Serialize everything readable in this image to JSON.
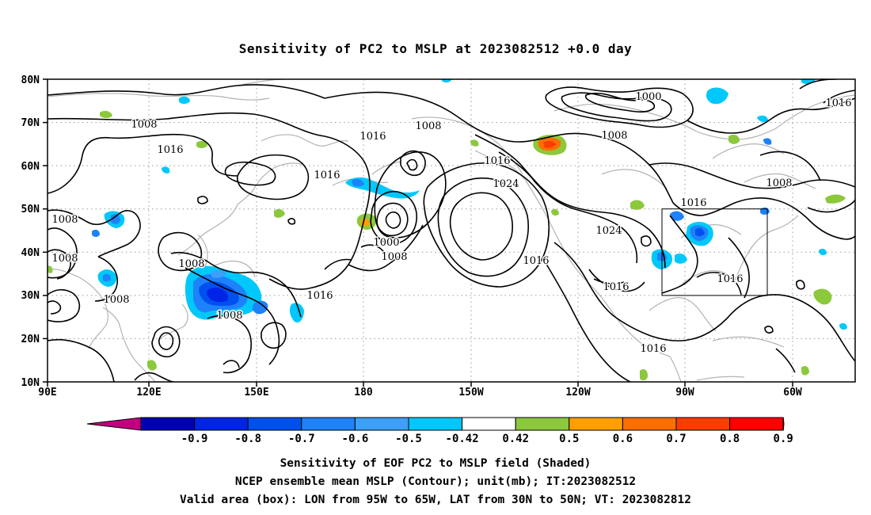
{
  "title": "Sensitivity of PC2 to MSLP at 2023082512 +0.0 day",
  "axes": {
    "lat_ticks": [
      "80N",
      "70N",
      "60N",
      "50N",
      "40N",
      "30N",
      "20N",
      "10N"
    ],
    "lon_ticks": [
      "90E",
      "120E",
      "150E",
      "180",
      "150W",
      "120W",
      "90W",
      "60W"
    ]
  },
  "contour_labels": [
    "1008",
    "1016",
    "1008",
    "1016",
    "1000",
    "1016",
    "1016",
    "1008",
    "1016",
    "1024",
    "1008",
    "1016",
    "1024",
    "1000",
    "1008",
    "1016",
    "1016",
    "1008",
    "1008",
    "1008",
    "1008",
    "1008",
    "1016",
    "1016",
    "1016"
  ],
  "colorbar": {
    "ticks": [
      "-0.9",
      "-0.8",
      "-0.7",
      "-0.6",
      "-0.5",
      "-0.42",
      "0.42",
      "0.5",
      "0.6",
      "0.7",
      "0.8",
      "0.9"
    ],
    "colors": [
      "#C2007F",
      "#0000B4",
      "#0024E6",
      "#0050F0",
      "#1E82FA",
      "#3CA0F8",
      "#00C8FA",
      "#FFFFFF",
      "#8CC83C",
      "#FFA000",
      "#FF6E00",
      "#FF3C00",
      "#FF0000",
      "#F5A0C8"
    ]
  },
  "captions": {
    "line1": "Sensitivity of EOF PC2 to MSLP field (Shaded)",
    "line2": "NCEP ensemble mean MSLP (Contour); unit(mb); IT:2023082512",
    "line3": "Valid area (box): LON from 95W to 65W, LAT from 30N to 50N; VT: 2023082812"
  }
}
